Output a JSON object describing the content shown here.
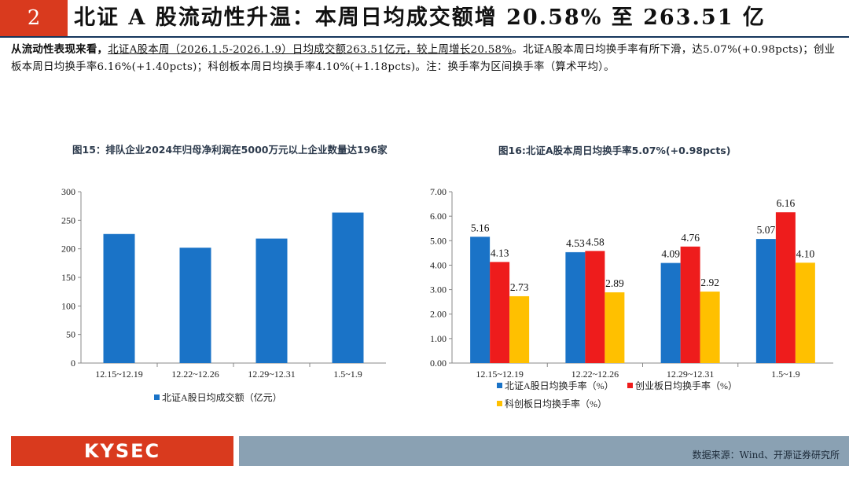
{
  "header": {
    "section_number": "2",
    "title": "北证 A 股流动性升温：本周日均成交额增 20.58% 至 263.51 亿"
  },
  "summary": {
    "lead": "从流动性表现来看，",
    "part1": "北证A股本周（2026.1.5-2026.1.9）日均成交额263.51亿元，较上周增长20.58%",
    "part2": "。北证A股本周日均换手率有所下滑，达5.07%(+0.98pcts)；创业板本周日均换手率6.16%(+1.40pcts)；科创板本周日均换手率4.10%(+1.18pcts)。注：换手率为区间换手率（算术平均）。"
  },
  "chart_data": [
    {
      "type": "bar",
      "title": "图15：排队企业2024年归母净利润在5000万元以上企业数量达196家",
      "categories": [
        "12.15~12.19",
        "12.22~12.26",
        "12.29~12.31",
        "1.5~1.9"
      ],
      "series": [
        {
          "name": "北证A股日均成交额（亿元）",
          "color": "#1a73c7",
          "values": [
            226,
            202,
            218,
            263.51
          ]
        }
      ],
      "ylim": [
        0,
        300
      ],
      "yticks": [
        "0",
        "50",
        "100",
        "150",
        "200",
        "250",
        "300"
      ],
      "grid": false,
      "legend": "bottom"
    },
    {
      "type": "bar",
      "title": "图16:北证A股本周日均换手率5.07%(+0.98pcts)",
      "categories": [
        "12.15~12.19",
        "12.22~12.26",
        "12.29~12.31",
        "1.5~1.9"
      ],
      "series": [
        {
          "name": "北证A股日均换手率（%）",
          "color": "#1a73c7",
          "values": [
            5.16,
            4.53,
            4.09,
            5.07
          ],
          "labels": [
            "5.16",
            "4.53",
            "4.09",
            "5.07"
          ]
        },
        {
          "name": "创业板日均换手率（%）",
          "color": "#ee1c1c",
          "values": [
            4.13,
            4.58,
            4.76,
            6.16
          ],
          "labels": [
            "4.13",
            "4.58",
            "4.76",
            "6.16"
          ]
        },
        {
          "name": "科创板日均换手率（%）",
          "color": "#ffc000",
          "values": [
            2.73,
            2.89,
            2.92,
            4.1
          ],
          "labels": [
            "2.73",
            "2.89",
            "2.92",
            "4.10"
          ]
        }
      ],
      "ylim": [
        0,
        7
      ],
      "yticks": [
        "0.00",
        "1.00",
        "2.00",
        "3.00",
        "4.00",
        "5.00",
        "6.00",
        "7.00"
      ],
      "grid": false,
      "legend": "bottom"
    }
  ],
  "footer": {
    "logo_text": "KYSEC",
    "source": "数据来源：Wind、开源证券研究所",
    "accent_color": "#d93a1e",
    "bar_color": "#8aa1b3"
  }
}
